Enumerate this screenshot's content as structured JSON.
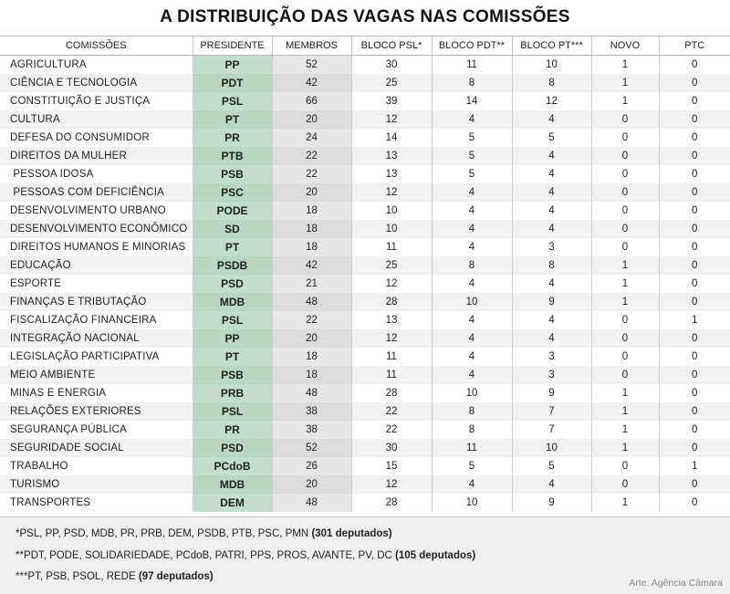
{
  "title": "A DISTRIBUIÇÃO DAS VAGAS NAS COMISSÕES",
  "table": {
    "headers": [
      "COMISSÕES",
      "PRESIDENTE",
      "MEMBROS",
      "BLOCO PSL*",
      "BLOCO PDT**",
      "BLOCO PT***",
      "NOVO",
      "PTC"
    ],
    "rows": [
      [
        "AGRICULTURA",
        "PP",
        "52",
        "30",
        "11",
        "10",
        "1",
        "0"
      ],
      [
        "CIÊNCIA E TECNOLOGIA",
        "PDT",
        "42",
        "25",
        "8",
        "8",
        "1",
        "0"
      ],
      [
        "CONSTITUIÇÃO E JUSTIÇA",
        "PSL",
        "66",
        "39",
        "14",
        "12",
        "1",
        "0"
      ],
      [
        "CULTURA",
        "PT",
        "20",
        "12",
        "4",
        "4",
        "0",
        "0"
      ],
      [
        "DEFESA DO CONSUMIDOR",
        "PR",
        "24",
        "14",
        "5",
        "5",
        "0",
        "0"
      ],
      [
        "DIREITOS DA MULHER",
        "PTB",
        "22",
        "13",
        "5",
        "4",
        "0",
        "0"
      ],
      [
        " PESSOA IDOSA",
        "PSB",
        "22",
        "13",
        "5",
        "4",
        "0",
        "0"
      ],
      [
        " PESSOAS COM DEFICIÊNCIA",
        "PSC",
        "20",
        "12",
        "4",
        "4",
        "0",
        "0"
      ],
      [
        "DESENVOLVIMENTO URBANO",
        "PODE",
        "18",
        "10",
        "4",
        "4",
        "0",
        "0"
      ],
      [
        "DESENVOLVIMENTO ECONÔMICO",
        "SD",
        "18",
        "10",
        "4",
        "4",
        "0",
        "0"
      ],
      [
        "DIREITOS HUMANOS E MINORIAS",
        "PT",
        "18",
        "11",
        "4",
        "3",
        "0",
        "0"
      ],
      [
        "EDUCAÇÃO",
        "PSDB",
        "42",
        "25",
        "8",
        "8",
        "1",
        "0"
      ],
      [
        "ESPORTE",
        "PSD",
        "21",
        "12",
        "4",
        "4",
        "1",
        "0"
      ],
      [
        "FINANÇAS E TRIBUTAÇÃO",
        "MDB",
        "48",
        "28",
        "10",
        "9",
        "1",
        "0"
      ],
      [
        "FISCALIZAÇÃO FINANCEIRA",
        "PSL",
        "22",
        "13",
        "4",
        "4",
        "0",
        "1"
      ],
      [
        "INTEGRAÇÃO NACIONAL",
        "PP",
        "20",
        "12",
        "4",
        "4",
        "0",
        "0"
      ],
      [
        "LEGISLAÇÃO PARTICIPATIVA",
        "PT",
        "18",
        "11",
        "4",
        "3",
        "0",
        "0"
      ],
      [
        "MEIO AMBIENTE",
        "PSB",
        "18",
        "11",
        "4",
        "3",
        "0",
        "0"
      ],
      [
        "MINAS E ENERGIA",
        "PRB",
        "48",
        "28",
        "10",
        "9",
        "1",
        "0"
      ],
      [
        "RELAÇÕES EXTERIORES",
        "PSL",
        "38",
        "22",
        "8",
        "7",
        "1",
        "0"
      ],
      [
        "SEGURANÇA PÚBLICA",
        "PR",
        "38",
        "22",
        "8",
        "7",
        "1",
        "0"
      ],
      [
        "SEGURIDADE SOCIAL",
        "PSD",
        "52",
        "30",
        "11",
        "10",
        "1",
        "0"
      ],
      [
        "TRABALHO",
        "PCdoB",
        "26",
        "15",
        "5",
        "5",
        "0",
        "1"
      ],
      [
        "TURISMO",
        "MDB",
        "20",
        "12",
        "4",
        "4",
        "0",
        "0"
      ],
      [
        "TRANSPORTES",
        "DEM",
        "48",
        "28",
        "10",
        "9",
        "1",
        "0"
      ]
    ]
  },
  "footnotes": [
    {
      "text": "*PSL, PP, PSD, MDB, PR, PRB, DEM, PSDB, PTB, PSC, PMN ",
      "bold": "(301 deputados)"
    },
    {
      "text": "**PDT, PODE, SOLIDARIEDADE, PCdoB, PATRI, PPS, PROS, AVANTE, PV, DC ",
      "bold": "(105 deputados)"
    },
    {
      "text": "***PT, PSB, PSOL, REDE ",
      "bold": "(97 deputados)"
    }
  ],
  "credit": "Arte: Agência Câmara"
}
